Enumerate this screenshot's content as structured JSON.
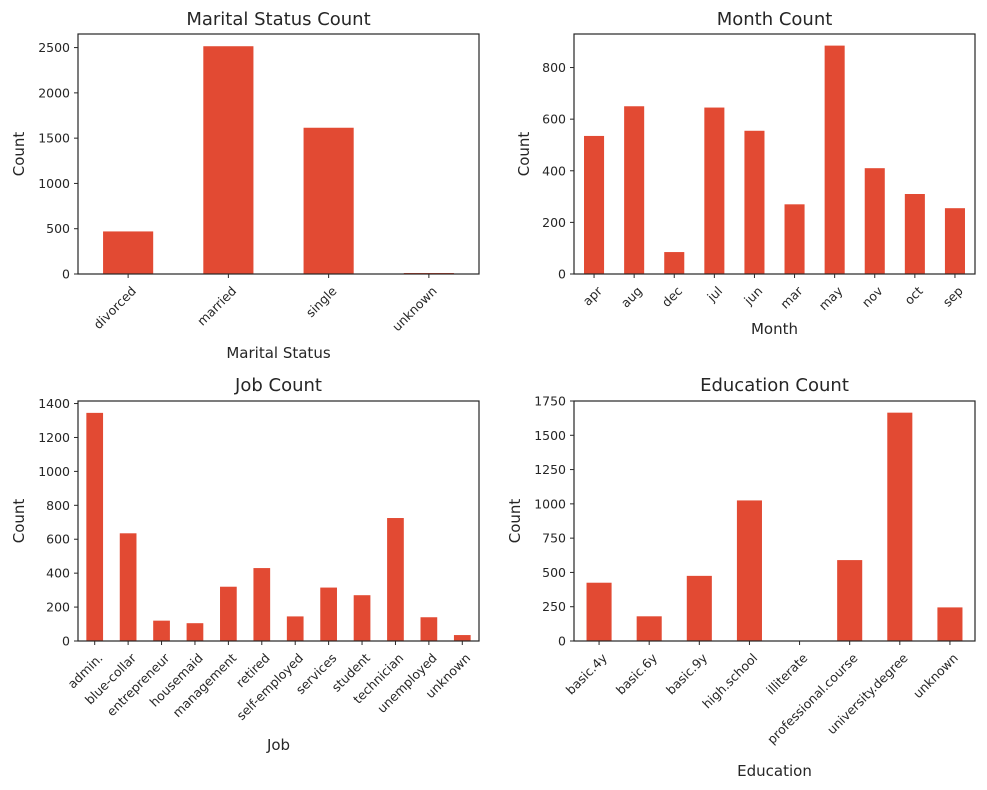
{
  "colors": {
    "bar": "#e24a33",
    "axes": "#262626",
    "background": "#ffffff"
  },
  "chart_data": [
    {
      "type": "bar",
      "title": "Marital Status Count",
      "xlabel": "Marital Status",
      "ylabel": "Count",
      "categories": [
        "divorced",
        "married",
        "single",
        "unknown"
      ],
      "values": [
        470,
        2515,
        1615,
        11
      ],
      "ylim": [
        0,
        2650
      ],
      "yticks": [
        0,
        500,
        1000,
        1500,
        2000,
        2500
      ],
      "ytick_labels": [
        "0",
        "500",
        "1000",
        "1500",
        "2000",
        "2500"
      ],
      "grid": false
    },
    {
      "type": "bar",
      "title": "Month Count",
      "xlabel": "Month",
      "ylabel": "Count",
      "categories": [
        "apr",
        "aug",
        "dec",
        "jul",
        "jun",
        "mar",
        "may",
        "nov",
        "oct",
        "sep"
      ],
      "values": [
        535,
        650,
        85,
        645,
        555,
        270,
        885,
        410,
        310,
        255
      ],
      "ylim": [
        0,
        930
      ],
      "yticks": [
        0,
        200,
        400,
        600,
        800
      ],
      "ytick_labels": [
        "0",
        "200",
        "400",
        "600",
        "800"
      ],
      "grid": false
    },
    {
      "type": "bar",
      "title": "Job Count",
      "xlabel": "Job",
      "ylabel": "Count",
      "categories": [
        "admin.",
        "blue-collar",
        "entrepreneur",
        "housemaid",
        "management",
        "retired",
        "self-employed",
        "services",
        "student",
        "technician",
        "unemployed",
        "unknown"
      ],
      "values": [
        1345,
        635,
        120,
        105,
        320,
        430,
        145,
        315,
        270,
        725,
        140,
        35
      ],
      "ylim": [
        0,
        1415
      ],
      "yticks": [
        0,
        200,
        400,
        600,
        800,
        1000,
        1200,
        1400
      ],
      "ytick_labels": [
        "0",
        "200",
        "400",
        "600",
        "800",
        "1000",
        "1200",
        "1400"
      ],
      "grid": false
    },
    {
      "type": "bar",
      "title": "Education Count",
      "xlabel": "Education",
      "ylabel": "Count",
      "categories": [
        "basic.4y",
        "basic.6y",
        "basic.9y",
        "high.school",
        "illiterate",
        "professional.course",
        "university.degree",
        "unknown"
      ],
      "values": [
        425,
        180,
        475,
        1025,
        1,
        590,
        1665,
        245
      ],
      "ylim": [
        0,
        1750
      ],
      "yticks": [
        0,
        250,
        500,
        750,
        1000,
        1250,
        1500,
        1750
      ],
      "ytick_labels": [
        "0",
        "250",
        "500",
        "750",
        "1000",
        "1250",
        "1500",
        "1750"
      ],
      "grid": false
    }
  ]
}
